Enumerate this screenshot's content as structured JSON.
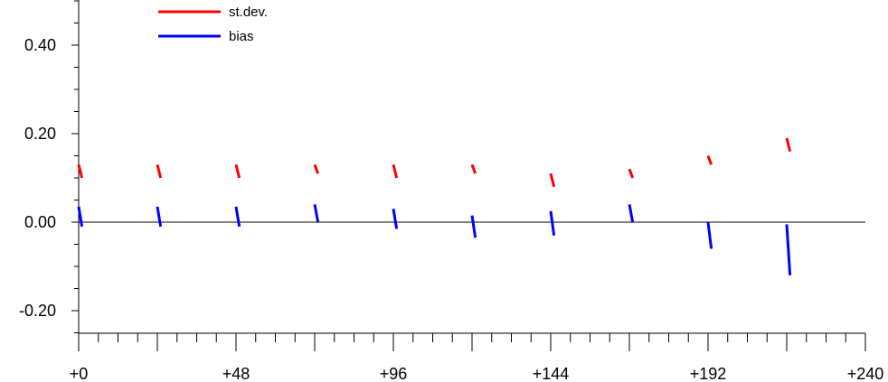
{
  "chart_data": {
    "type": "line",
    "title": "",
    "xlabel": "",
    "ylabel": "",
    "xlim": [
      0,
      240
    ],
    "ylim": [
      -0.25,
      0.5
    ],
    "x_ticks": [
      0,
      48,
      96,
      144,
      192,
      240
    ],
    "x_tick_labels": [
      "+0",
      "+48",
      "+96",
      "+144",
      "+192",
      "+240"
    ],
    "y_ticks": [
      0.4,
      0.2,
      0.0,
      -0.2
    ],
    "y_tick_labels": [
      "0.40",
      "0.20",
      "0.00",
      "-0.20"
    ],
    "zero_line": true,
    "grid": false,
    "legend_position": "top-left",
    "series": [
      {
        "name": "st.dev.",
        "color": "#ff0000",
        "segments": [
          {
            "x": [
              0,
              1
            ],
            "y": [
              0.13,
              0.1
            ]
          },
          {
            "x": [
              24,
              25
            ],
            "y": [
              0.13,
              0.1
            ]
          },
          {
            "x": [
              48,
              49
            ],
            "y": [
              0.13,
              0.1
            ]
          },
          {
            "x": [
              72,
              73
            ],
            "y": [
              0.13,
              0.11
            ]
          },
          {
            "x": [
              96,
              97
            ],
            "y": [
              0.13,
              0.1
            ]
          },
          {
            "x": [
              120,
              121
            ],
            "y": [
              0.13,
              0.11
            ]
          },
          {
            "x": [
              144,
              145
            ],
            "y": [
              0.11,
              0.08
            ]
          },
          {
            "x": [
              168,
              169
            ],
            "y": [
              0.12,
              0.1
            ]
          },
          {
            "x": [
              192,
              193
            ],
            "y": [
              0.15,
              0.13
            ]
          },
          {
            "x": [
              216,
              217
            ],
            "y": [
              0.19,
              0.16
            ]
          }
        ]
      },
      {
        "name": "bias",
        "color": "#0000ff",
        "segments": [
          {
            "x": [
              0,
              1
            ],
            "y": [
              0.035,
              -0.01
            ]
          },
          {
            "x": [
              24,
              25
            ],
            "y": [
              0.035,
              -0.01
            ]
          },
          {
            "x": [
              48,
              49
            ],
            "y": [
              0.035,
              -0.01
            ]
          },
          {
            "x": [
              72,
              73
            ],
            "y": [
              0.04,
              0.0
            ]
          },
          {
            "x": [
              96,
              97
            ],
            "y": [
              0.03,
              -0.015
            ]
          },
          {
            "x": [
              120,
              121
            ],
            "y": [
              0.015,
              -0.035
            ]
          },
          {
            "x": [
              144,
              145
            ],
            "y": [
              0.025,
              -0.03
            ]
          },
          {
            "x": [
              168,
              169
            ],
            "y": [
              0.04,
              0.0
            ]
          },
          {
            "x": [
              192,
              193
            ],
            "y": [
              0.0,
              -0.06
            ]
          },
          {
            "x": [
              216,
              217
            ],
            "y": [
              -0.005,
              -0.12
            ]
          }
        ]
      }
    ]
  }
}
